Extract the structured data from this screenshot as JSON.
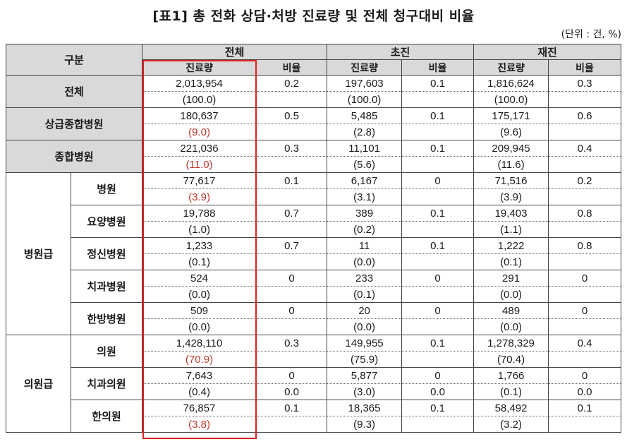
{
  "title": "[표1] 총 전화 상담·처방 진료량 및 전체 청구대비 비율",
  "unit": "(단위 : 건, %)",
  "header": {
    "gubun": "구분",
    "groups": [
      "전체",
      "초진",
      "재진"
    ],
    "sub_volume": "진료량",
    "sub_rate": "비율"
  },
  "groups": {
    "hospital": "병원급",
    "clinic": "의원급"
  },
  "rows": [
    {
      "label": "전체",
      "total_vol": "2,013,954",
      "total_pct": "(100.0)",
      "total_rate": "0.2",
      "first_vol": "197,603",
      "first_pct": "(100.0)",
      "first_rate": "0.1",
      "re_vol": "1,816,624",
      "re_pct": "(100.0)",
      "re_rate": "0.3",
      "pct2": ""
    },
    {
      "label": "상급종합병원",
      "total_vol": "180,637",
      "total_pct": "(9.0)",
      "total_rate": "0.5",
      "first_vol": "5,485",
      "first_pct": "(2.8)",
      "first_rate": "0.1",
      "re_vol": "175,171",
      "re_pct": "(9.6)",
      "re_rate": "0.6"
    },
    {
      "label": "종합병원",
      "total_vol": "221,036",
      "total_pct": "(11.0)",
      "total_rate": "0.3",
      "first_vol": "11,101",
      "first_pct": "(5.6)",
      "first_rate": "0.1",
      "re_vol": "209,945",
      "re_pct": "(11.6)",
      "re_rate": "0.4"
    },
    {
      "label": "병원",
      "total_vol": "77,617",
      "total_pct": "(3.9)",
      "total_rate": "0.1",
      "first_vol": "6,167",
      "first_pct": "(3.1)",
      "first_rate": "0",
      "re_vol": "71,516",
      "re_pct": "(3.9)",
      "re_rate": "0.2"
    },
    {
      "label": "요양병원",
      "total_vol": "19,788",
      "total_pct": "(1.0)",
      "total_rate": "0.7",
      "first_vol": "389",
      "first_pct": "(0.2)",
      "first_rate": "0.1",
      "re_vol": "19,403",
      "re_pct": "(1.1)",
      "re_rate": "0.8"
    },
    {
      "label": "정신병원",
      "total_vol": "1,233",
      "total_pct": "(0.1)",
      "total_rate": "0.7",
      "first_vol": "11",
      "first_pct": "(0.0)",
      "first_rate": "0.1",
      "re_vol": "1,222",
      "re_pct": "(0.1)",
      "re_rate": "0.8"
    },
    {
      "label": "치과병원",
      "total_vol": "524",
      "total_pct": "(0.0)",
      "total_rate": "0",
      "first_vol": "233",
      "first_pct": "(0.1)",
      "first_rate": "0",
      "re_vol": "291",
      "re_pct": "(0.0)",
      "re_rate": "0"
    },
    {
      "label": "한방병원",
      "total_vol": "509",
      "total_pct": "(0.0)",
      "total_rate": "0",
      "first_vol": "20",
      "first_pct": "(0.0)",
      "first_rate": "0",
      "re_vol": "489",
      "re_pct": "(0.0)",
      "re_rate": "0"
    },
    {
      "label": "의원",
      "total_vol": "1,428,110",
      "total_pct": "(70.9)",
      "total_rate": "0.3",
      "first_vol": "149,955",
      "first_pct": "(75.9)",
      "first_rate": "0.1",
      "re_vol": "1,278,329",
      "re_pct": "(70.4)",
      "re_rate": "0.4"
    },
    {
      "label": "치과의원",
      "total_vol": "7,643",
      "total_pct": "(0.4)",
      "total_rate": "0",
      "total_rate2": "0.0",
      "first_vol": "5,877",
      "first_pct": "(3.0)",
      "first_rate": "0",
      "first_rate2": "0.0",
      "re_vol": "1,766",
      "re_pct": "(0.1)",
      "re_rate": "0",
      "re_rate2": "0.0"
    },
    {
      "label": "한의원",
      "total_vol": "76,857",
      "total_pct": "(3.8)",
      "total_rate": "0.1",
      "first_vol": "18,365",
      "first_pct": "(9.3)",
      "first_rate": "0.1",
      "re_vol": "58,492",
      "re_pct": "(3.2)",
      "re_rate": "0.1"
    }
  ],
  "colors": {
    "header_bg": "#d9d9d9",
    "highlight_border": "#e02020",
    "red_text": "#c0392b"
  }
}
